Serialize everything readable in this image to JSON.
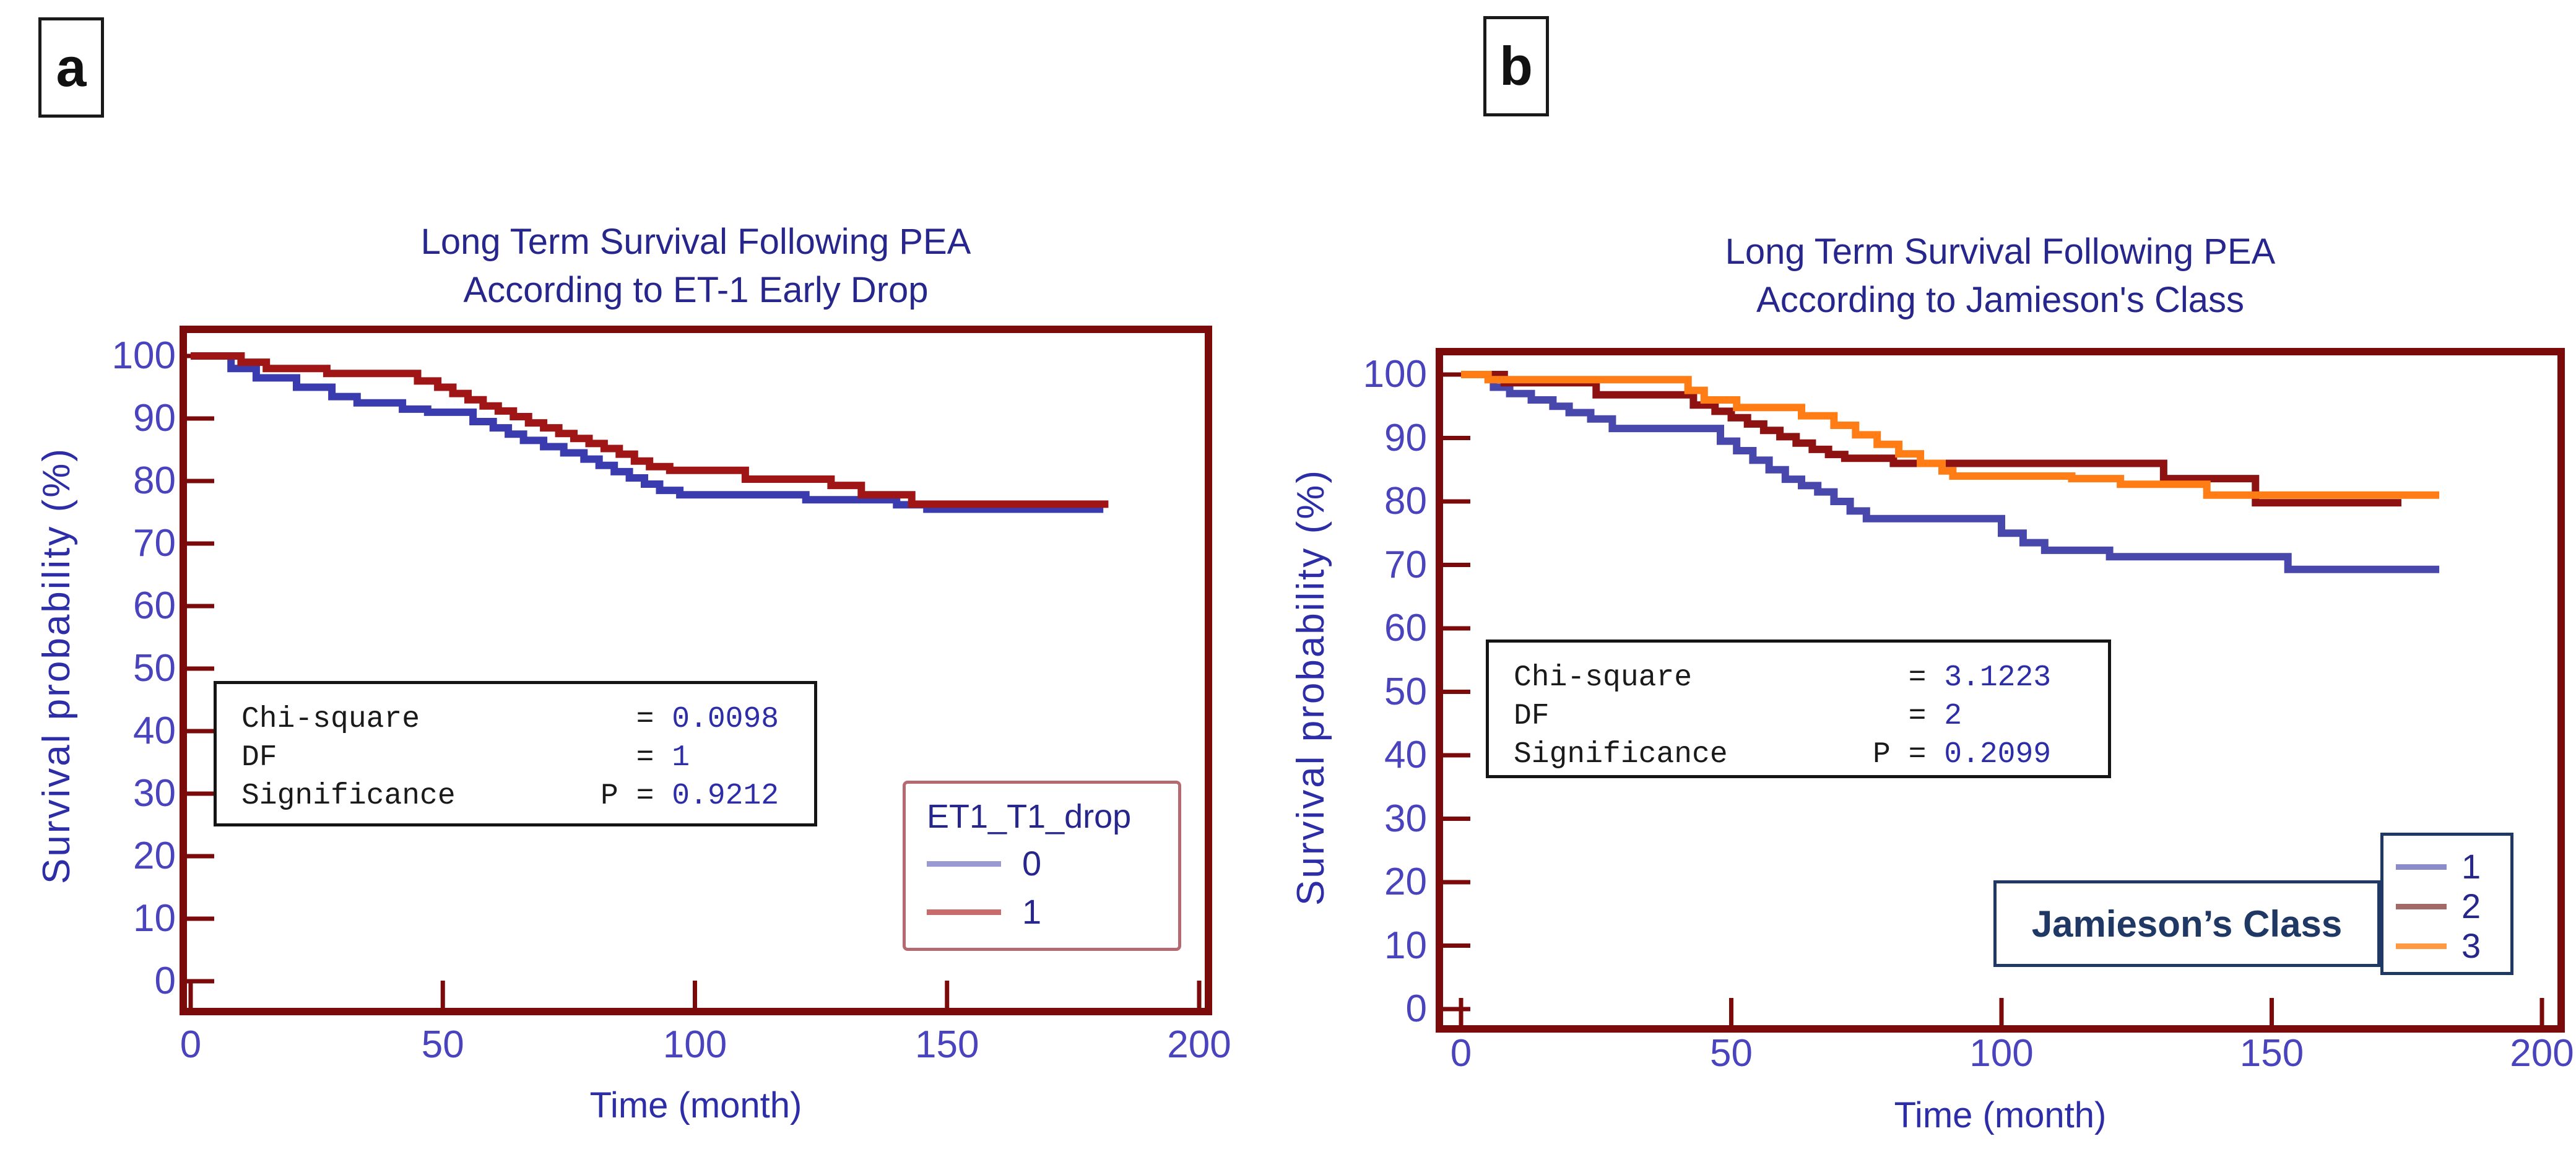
{
  "panel_labels": {
    "a": "a",
    "b": "b"
  },
  "colors": {
    "background": "#ffffff",
    "frame": "#7b0a0a",
    "title": "#26268c",
    "tick_label": "#4a43be",
    "axis_label": "#2d2da8",
    "stats_label": "#1a1a1a",
    "stats_value": "#2d2da8",
    "legend_a_border": "#b46a70",
    "legend_b_border": "#1f3864",
    "panel_letter": "#111111"
  },
  "chart_data": [
    {
      "type": "line",
      "subtype": "kaplan-meier-step",
      "panel": "a",
      "title1": "Long Term Survival Following PEA",
      "title2": "According to ET-1 Early Drop",
      "xlabel": "Time (month)",
      "ylabel": "Survival probability (%)",
      "xlim": [
        0,
        202
      ],
      "ylim": [
        0,
        104
      ],
      "xticks": [
        0,
        50,
        100,
        150,
        200
      ],
      "yticks": [
        0,
        10,
        20,
        30,
        40,
        50,
        60,
        70,
        80,
        90,
        100
      ],
      "grid": false,
      "stats": {
        "rows": [
          {
            "label": "Chi-square",
            "eq": "  = ",
            "num": "0.0098"
          },
          {
            "label": "DF",
            "eq": "  = ",
            "num": "1"
          },
          {
            "label": "Significance",
            "eq": "P = ",
            "num": "0.9212"
          }
        ]
      },
      "legend": {
        "title": "ET1_T1_drop",
        "entries": [
          {
            "label": "0",
            "color": "#9a9ad2"
          },
          {
            "label": "1",
            "color": "#c96b6b"
          }
        ]
      },
      "series": [
        {
          "name": "0",
          "color": "#3b3bb0",
          "points": [
            [
              0,
              100
            ],
            [
              8,
              98
            ],
            [
              13,
              96.5
            ],
            [
              21,
              95
            ],
            [
              28,
              93.5
            ],
            [
              33,
              92.5
            ],
            [
              42,
              91.5
            ],
            [
              47,
              91
            ],
            [
              56,
              89.5
            ],
            [
              60,
              88.5
            ],
            [
              63,
              87.5
            ],
            [
              66,
              86.5
            ],
            [
              70,
              85.5
            ],
            [
              74,
              84.5
            ],
            [
              78,
              83.5
            ],
            [
              81,
              82.5
            ],
            [
              84,
              81.5
            ],
            [
              87,
              80.5
            ],
            [
              90,
              79.5
            ],
            [
              93,
              78.5
            ],
            [
              97,
              77.8
            ],
            [
              122,
              77
            ],
            [
              140,
              76.2
            ],
            [
              146,
              75.5
            ],
            [
              181,
              75.5
            ]
          ]
        },
        {
          "name": "1",
          "color": "#a01616",
          "points": [
            [
              0,
              100
            ],
            [
              10,
              99
            ],
            [
              15,
              98
            ],
            [
              27,
              97.2
            ],
            [
              45,
              96
            ],
            [
              49,
              95
            ],
            [
              52,
              94
            ],
            [
              55,
              93
            ],
            [
              58,
              92
            ],
            [
              61,
              91.2
            ],
            [
              64,
              90.3
            ],
            [
              67,
              89.3
            ],
            [
              70,
              88.5
            ],
            [
              73,
              87.6
            ],
            [
              76,
              86.8
            ],
            [
              79,
              86
            ],
            [
              82,
              85.2
            ],
            [
              85,
              84.3
            ],
            [
              88,
              83.2
            ],
            [
              91,
              82.3
            ],
            [
              95,
              81.7
            ],
            [
              110,
              80.3
            ],
            [
              127,
              79.3
            ],
            [
              133,
              77.8
            ],
            [
              143,
              76.3
            ],
            [
              182,
              76.3
            ]
          ]
        }
      ]
    },
    {
      "type": "line",
      "subtype": "kaplan-meier-step",
      "panel": "b",
      "title1": "Long Term Survival Following PEA",
      "title2": "According to Jamieson's Class",
      "xlabel": "Time (month)",
      "ylabel": "Survival probability (%)",
      "xlim": [
        0,
        202
      ],
      "ylim": [
        0,
        104
      ],
      "xticks": [
        0,
        50,
        100,
        150,
        200
      ],
      "yticks": [
        0,
        10,
        20,
        30,
        40,
        50,
        60,
        70,
        80,
        90,
        100
      ],
      "grid": false,
      "stats": {
        "rows": [
          {
            "label": "Chi-square",
            "eq": "  = ",
            "num": "3.1223"
          },
          {
            "label": "DF",
            "eq": "  = ",
            "num": "2"
          },
          {
            "label": "Significance",
            "eq": "P = ",
            "num": "0.2099"
          }
        ]
      },
      "legend": {
        "box_label": "Jamieson’s Class",
        "entries": [
          {
            "label": "1",
            "color": "#8c8cca"
          },
          {
            "label": "2",
            "color": "#a26a66"
          },
          {
            "label": "3",
            "color": "#ff9a43"
          }
        ]
      },
      "series": [
        {
          "name": "1",
          "color": "#4848ac",
          "points": [
            [
              0,
              100
            ],
            [
              6,
              98
            ],
            [
              9,
              97
            ],
            [
              13,
              96
            ],
            [
              17,
              95
            ],
            [
              20,
              94
            ],
            [
              24,
              93
            ],
            [
              28,
              91.5
            ],
            [
              48,
              89.5
            ],
            [
              51,
              88
            ],
            [
              54,
              86.5
            ],
            [
              57,
              85
            ],
            [
              60,
              83.5
            ],
            [
              63,
              82.5
            ],
            [
              66,
              81.5
            ],
            [
              69,
              80
            ],
            [
              72,
              78.5
            ],
            [
              75,
              77.3
            ],
            [
              100,
              75
            ],
            [
              104,
              73.5
            ],
            [
              108,
              72.3
            ],
            [
              120,
              71.3
            ],
            [
              153,
              69.3
            ],
            [
              181,
              69.3
            ]
          ]
        },
        {
          "name": "2",
          "color": "#8e1212",
          "points": [
            [
              0,
              100
            ],
            [
              8,
              98.7
            ],
            [
              25,
              96.8
            ],
            [
              43,
              95.2
            ],
            [
              47,
              94.2
            ],
            [
              50,
              93.2
            ],
            [
              53,
              92.2
            ],
            [
              56,
              91.2
            ],
            [
              59,
              90.2
            ],
            [
              62,
              89.2
            ],
            [
              65,
              88.2
            ],
            [
              68,
              87.4
            ],
            [
              71,
              86.8
            ],
            [
              80,
              86
            ],
            [
              130,
              83.6
            ],
            [
              147,
              79.8
            ],
            [
              174,
              79.8
            ]
          ]
        },
        {
          "name": "3",
          "color": "#ff7d14",
          "points": [
            [
              0,
              100
            ],
            [
              5,
              99.2
            ],
            [
              42,
              97.5
            ],
            [
              45,
              96
            ],
            [
              51,
              94.8
            ],
            [
              63,
              93.5
            ],
            [
              69,
              92
            ],
            [
              73,
              90.5
            ],
            [
              77,
              89
            ],
            [
              81,
              87.5
            ],
            [
              85,
              86
            ],
            [
              89,
              84.8
            ],
            [
              91,
              84
            ],
            [
              113,
              83.6
            ],
            [
              122,
              82.7
            ],
            [
              138,
              81
            ],
            [
              181,
              81
            ]
          ]
        }
      ]
    }
  ]
}
